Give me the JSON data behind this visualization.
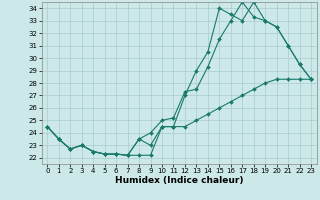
{
  "title": "",
  "xlabel": "Humidex (Indice chaleur)",
  "xlim": [
    -0.5,
    23.5
  ],
  "ylim": [
    21.5,
    34.5
  ],
  "yticks": [
    22,
    23,
    24,
    25,
    26,
    27,
    28,
    29,
    30,
    31,
    32,
    33,
    34
  ],
  "xticks": [
    0,
    1,
    2,
    3,
    4,
    5,
    6,
    7,
    8,
    9,
    10,
    11,
    12,
    13,
    14,
    15,
    16,
    17,
    18,
    19,
    20,
    21,
    22,
    23
  ],
  "background_color": "#cce8e8",
  "grid_color": "#aacccc",
  "line_color": "#1a7a6a",
  "line1_y": [
    24.5,
    23.5,
    22.7,
    23.0,
    22.5,
    22.3,
    22.3,
    22.2,
    23.5,
    23.0,
    24.5,
    24.5,
    27.0,
    29.0,
    30.5,
    34.0,
    33.5,
    33.0,
    34.5,
    33.0,
    32.5,
    31.0,
    29.5,
    28.3
  ],
  "line2_y": [
    24.5,
    23.5,
    22.7,
    23.0,
    22.5,
    22.3,
    22.3,
    22.2,
    23.5,
    24.0,
    25.0,
    25.2,
    27.3,
    27.5,
    29.3,
    31.5,
    33.0,
    34.5,
    33.3,
    33.0,
    32.5,
    31.0,
    29.5,
    28.3
  ],
  "line3_y": [
    24.5,
    23.5,
    22.7,
    23.0,
    22.5,
    22.3,
    22.3,
    22.2,
    22.2,
    22.2,
    24.5,
    24.5,
    24.5,
    25.0,
    25.5,
    26.0,
    26.5,
    27.0,
    27.5,
    28.0,
    28.3,
    28.3,
    28.3,
    28.3
  ],
  "tick_fontsize": 5.0,
  "xlabel_fontsize": 6.5,
  "marker_size": 2.0,
  "linewidth": 0.8
}
